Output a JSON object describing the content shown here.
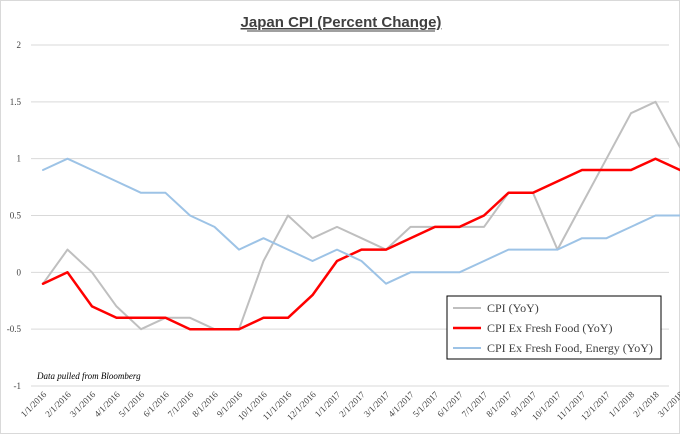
{
  "chart_data": {
    "type": "line",
    "title": "Japan CPI (Percent Change)",
    "note": "Data pulled from Bloomberg",
    "xlabel": "",
    "ylabel": "",
    "ylim": [
      -1,
      2
    ],
    "yticks": [
      "2",
      "1.5",
      "1",
      "0.5",
      "0",
      "-0.5",
      "-1"
    ],
    "ytick_values": [
      2,
      1.5,
      1,
      0.5,
      0,
      -0.5,
      -1
    ],
    "grid": true,
    "legend_position": "bottom-right",
    "x": [
      "1/1/2016",
      "2/1/2016",
      "3/1/2016",
      "4/1/2016",
      "5/1/2016",
      "6/1/2016",
      "7/1/2016",
      "8/1/2016",
      "9/1/2016",
      "10/1/2016",
      "11/1/2016",
      "12/1/2016",
      "1/1/2017",
      "2/1/2017",
      "3/1/2017",
      "4/1/2017",
      "5/1/2017",
      "6/1/2017",
      "7/1/2017",
      "8/1/2017",
      "9/1/2017",
      "10/1/2017",
      "11/1/2017",
      "12/1/2017",
      "1/1/2018",
      "2/1/2018",
      "3/1/2018"
    ],
    "series": [
      {
        "name": "CPI (YoY)",
        "color": "#bfbfbf",
        "values": [
          -0.1,
          0.2,
          0.0,
          -0.3,
          -0.5,
          -0.4,
          -0.4,
          -0.5,
          -0.5,
          0.1,
          0.5,
          0.3,
          0.4,
          0.3,
          0.2,
          0.4,
          0.4,
          0.4,
          0.4,
          0.7,
          0.7,
          0.2,
          0.6,
          1.0,
          1.4,
          1.5,
          1.1
        ]
      },
      {
        "name": "CPI Ex Fresh Food (YoY)",
        "color": "#ff0000",
        "values": [
          -0.1,
          0.0,
          -0.3,
          -0.4,
          -0.4,
          -0.4,
          -0.5,
          -0.5,
          -0.5,
          -0.4,
          -0.4,
          -0.2,
          0.1,
          0.2,
          0.2,
          0.3,
          0.4,
          0.4,
          0.5,
          0.7,
          0.7,
          0.8,
          0.9,
          0.9,
          0.9,
          1.0,
          0.9
        ]
      },
      {
        "name": "CPI Ex Fresh Food, Energy (YoY)",
        "color": "#9dc3e6",
        "values": [
          0.9,
          1.0,
          0.9,
          0.8,
          0.7,
          0.7,
          0.5,
          0.4,
          0.2,
          0.3,
          0.2,
          0.1,
          0.2,
          0.1,
          -0.1,
          0.0,
          0.0,
          0.0,
          0.1,
          0.2,
          0.2,
          0.2,
          0.3,
          0.3,
          0.4,
          0.5,
          0.5
        ]
      }
    ]
  }
}
